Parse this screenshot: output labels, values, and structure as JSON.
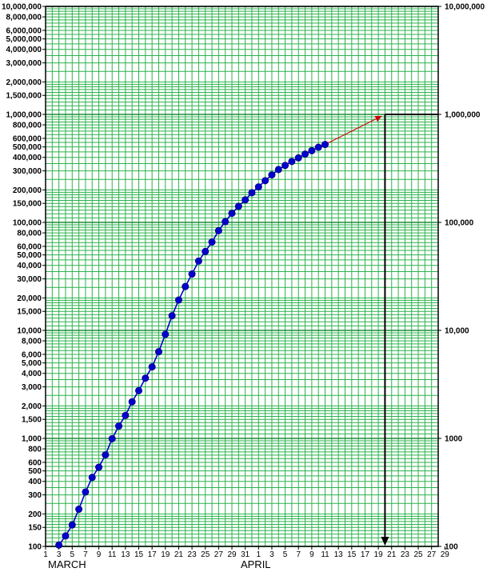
{
  "chart_data": {
    "type": "line",
    "title": "",
    "xlabel": "",
    "ylabel": "",
    "y_scale": "log",
    "ylim": [
      100,
      10000000
    ],
    "x_range": [
      "March 1",
      "April 30"
    ],
    "grid": true,
    "months": [
      "MARCH",
      "APRIL"
    ],
    "x_tick_labels": [
      "1",
      "3",
      "5",
      "7",
      "9",
      "11",
      "13",
      "15",
      "17",
      "19",
      "21",
      "23",
      "25",
      "27",
      "29",
      "31",
      "1",
      "3",
      "5",
      "7",
      "9",
      "11",
      "13",
      "15",
      "17",
      "19",
      "21",
      "23",
      "25",
      "27",
      "29"
    ],
    "y_tick_labels_left": [
      "10,000,000",
      "8,000,000",
      "6,000,000",
      "5,000,000",
      "4,000,000",
      "3,000,000",
      "2,000,000",
      "1,500,000",
      "1,000,000",
      "800,000",
      "600,000",
      "500,000",
      "400,000",
      "300,000",
      "200,000",
      "150,000",
      "100,000",
      "80,000",
      "60,000",
      "50,000",
      "40,000",
      "30,000",
      "20,000",
      "15,000",
      "10,000",
      "8,000",
      "6,000",
      "5,000",
      "4,000",
      "3,000",
      "2,000",
      "1,500",
      "1,000",
      "800",
      "600",
      "500",
      "400",
      "300",
      "200",
      "150",
      "100"
    ],
    "y_tick_labels_right": [
      "10,000,000",
      "1,000,000",
      "100,000",
      "10,000",
      "1000",
      "100"
    ],
    "series": [
      {
        "color": "#0000cc",
        "x": [
          "March 3",
          "March 4",
          "March 5",
          "March 6",
          "March 7",
          "March 8",
          "March 9",
          "March 10",
          "March 11",
          "March 12",
          "March 13",
          "March 14",
          "March 15",
          "March 16",
          "March 17",
          "March 18",
          "March 19",
          "March 20",
          "March 21",
          "March 22",
          "March 23",
          "March 24",
          "March 25",
          "March 26",
          "March 27",
          "March 28",
          "March 29",
          "March 30",
          "March 31",
          "April 1",
          "April 2",
          "April 3",
          "April 4",
          "April 5",
          "April 6",
          "April 7",
          "April 8",
          "April 9",
          "April 10",
          "April 11",
          "April 12"
        ],
        "values": [
          103,
          125,
          158,
          221,
          319,
          435,
          541,
          704,
          994,
          1301,
          1630,
          2183,
          2770,
          3613,
          4596,
          6344,
          9197,
          13677,
          19100,
          25489,
          33276,
          43847,
          53740,
          65778,
          83836,
          101657,
          121478,
          140886,
          161807,
          188172,
          213372,
          243453,
          275586,
          308850,
          337072,
          366667,
          396223,
          429052,
          461437,
          496535,
          526396
        ]
      }
    ],
    "projection": {
      "color": "#cc0000",
      "from": {
        "x": "April 12",
        "y": 526396
      },
      "to": {
        "x": "April 21",
        "y": 1000000
      }
    },
    "guide_lines": {
      "color": "#000000",
      "y_level": 1000000,
      "x_date": "April 21"
    }
  }
}
